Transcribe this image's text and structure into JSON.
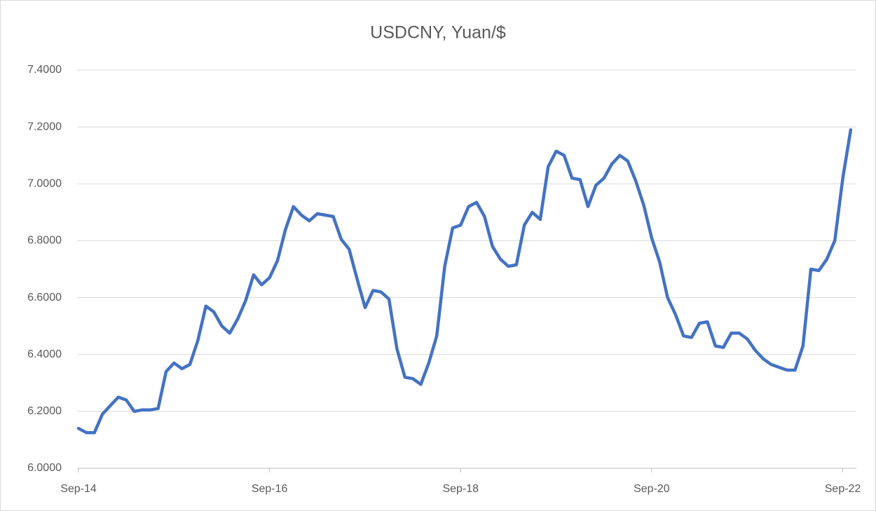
{
  "chart_data": {
    "type": "line",
    "title": "USDCNY, Yuan/$",
    "categories": [
      "Sep-14",
      null,
      null,
      null,
      null,
      null,
      null,
      null,
      null,
      null,
      null,
      null,
      null,
      null,
      null,
      null,
      null,
      null,
      null,
      null,
      null,
      null,
      null,
      null,
      "Sep-16",
      null,
      null,
      null,
      null,
      null,
      null,
      null,
      null,
      null,
      null,
      null,
      null,
      null,
      null,
      null,
      null,
      null,
      null,
      null,
      null,
      null,
      null,
      null,
      "Sep-18",
      null,
      null,
      null,
      null,
      null,
      null,
      null,
      null,
      null,
      null,
      null,
      null,
      null,
      null,
      null,
      null,
      null,
      null,
      null,
      null,
      null,
      null,
      null,
      "Sep-20",
      null,
      null,
      null,
      null,
      null,
      null,
      null,
      null,
      null,
      null,
      null,
      null,
      null,
      null,
      null,
      null,
      null,
      null,
      null,
      null,
      null,
      null,
      null,
      "Sep-22",
      null
    ],
    "series": [
      {
        "color": "#4472c4",
        "values": [
          6.14,
          6.125,
          6.125,
          6.19,
          6.22,
          6.25,
          6.24,
          6.2,
          6.205,
          6.205,
          6.21,
          6.34,
          6.37,
          6.35,
          6.365,
          6.45,
          6.57,
          6.55,
          6.5,
          6.475,
          6.525,
          6.59,
          6.68,
          6.645,
          6.67,
          6.73,
          6.84,
          6.92,
          6.89,
          6.87,
          6.895,
          6.89,
          6.885,
          6.805,
          6.77,
          6.665,
          6.565,
          6.625,
          6.62,
          6.595,
          6.42,
          6.32,
          6.315,
          6.295,
          6.37,
          6.465,
          6.71,
          6.845,
          6.855,
          6.92,
          6.935,
          6.885,
          6.78,
          6.735,
          6.71,
          6.715,
          6.855,
          6.9,
          6.875,
          7.06,
          7.115,
          7.1,
          7.02,
          7.015,
          6.92,
          6.995,
          7.02,
          7.07,
          7.1,
          7.08,
          7.01,
          6.925,
          6.81,
          6.725,
          6.6,
          6.54,
          6.465,
          6.46,
          6.51,
          6.515,
          6.43,
          6.425,
          6.475,
          6.475,
          6.455,
          6.415,
          6.385,
          6.365,
          6.355,
          6.345,
          6.345,
          6.43,
          6.7,
          6.695,
          6.735,
          6.8,
          7.02,
          7.19
        ]
      }
    ],
    "ylim": [
      6.0,
      7.4
    ],
    "yticks": [
      {
        "value": 6.0,
        "label": "6.0000"
      },
      {
        "value": 6.2,
        "label": "6.2000"
      },
      {
        "value": 6.4,
        "label": "6.4000"
      },
      {
        "value": 6.6,
        "label": "6.6000"
      },
      {
        "value": 6.8,
        "label": "6.8000"
      },
      {
        "value": 7.0,
        "label": "7.0000"
      },
      {
        "value": 7.2,
        "label": "7.2000"
      },
      {
        "value": 7.4,
        "label": "7.4000"
      }
    ],
    "grid": true
  }
}
